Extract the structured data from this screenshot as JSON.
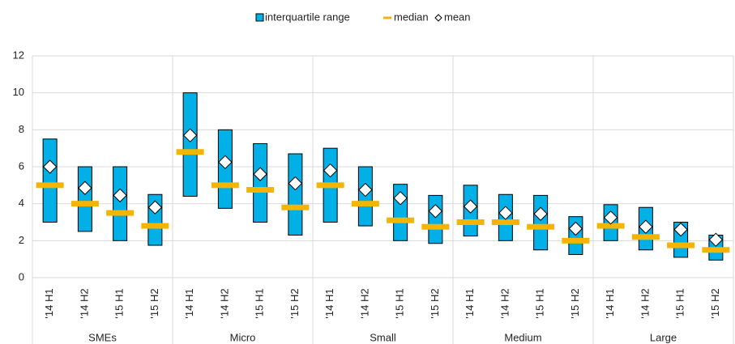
{
  "chart_data": {
    "type": "box",
    "groups": [
      {
        "name": "SMEs",
        "categories": [
          "'14 H1",
          "'14 H2",
          "'15 H1",
          "'15 H2"
        ]
      },
      {
        "name": "Micro",
        "categories": [
          "'14 H1",
          "'14 H2",
          "'15 H1",
          "'15 H2"
        ]
      },
      {
        "name": "Small",
        "categories": [
          "'14 H1",
          "'14 H2",
          "'15 H1",
          "'15 H2"
        ]
      },
      {
        "name": "Medium",
        "categories": [
          "'14 H1",
          "'14 H2",
          "'15 H1",
          "'15 H2"
        ]
      },
      {
        "name": "Large",
        "categories": [
          "'14 H1",
          "'14 H2",
          "'15 H1",
          "'15 H2"
        ]
      }
    ],
    "series": [
      {
        "name": "interquartile range",
        "color": "#00b0e6",
        "low": [
          3.0,
          2.5,
          2.0,
          1.75,
          4.4,
          3.75,
          3.0,
          2.3,
          3.0,
          2.8,
          2.0,
          1.85,
          2.25,
          2.0,
          1.5,
          1.25,
          2.0,
          1.5,
          1.1,
          0.95
        ],
        "high": [
          7.5,
          6.0,
          6.0,
          4.5,
          10.0,
          8.0,
          7.25,
          6.7,
          7.0,
          6.0,
          5.05,
          4.45,
          5.0,
          4.5,
          4.45,
          3.3,
          3.95,
          3.8,
          3.0,
          2.3
        ]
      },
      {
        "name": "median",
        "color": "#f5b400",
        "values": [
          5.0,
          4.0,
          3.5,
          2.8,
          6.8,
          5.0,
          4.75,
          3.8,
          5.0,
          4.0,
          3.1,
          2.75,
          3.0,
          3.0,
          2.75,
          2.0,
          2.8,
          2.2,
          1.75,
          1.5
        ]
      },
      {
        "name": "mean",
        "color": "#ffffff",
        "values": [
          6.0,
          4.85,
          4.45,
          3.8,
          7.7,
          6.25,
          5.6,
          5.1,
          5.8,
          4.75,
          4.3,
          3.6,
          3.85,
          3.5,
          3.45,
          2.65,
          3.25,
          2.75,
          2.6,
          2.05
        ]
      }
    ],
    "ylim": [
      0,
      12
    ],
    "yticks": [
      0,
      2,
      4,
      6,
      8,
      10,
      12
    ],
    "grid": true
  }
}
